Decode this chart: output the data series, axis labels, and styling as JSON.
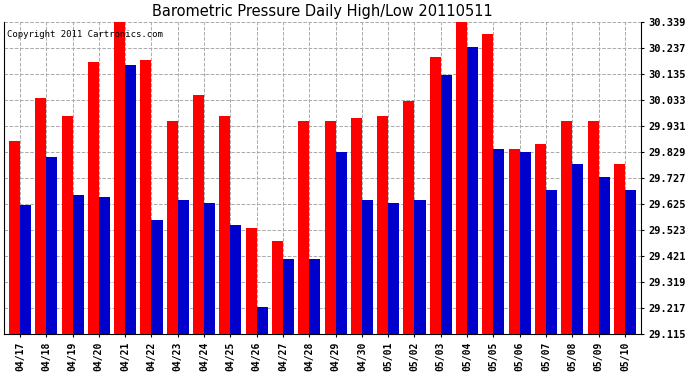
{
  "title": "Barometric Pressure Daily High/Low 20110511",
  "copyright": "Copyright 2011 Cartronics.com",
  "dates": [
    "04/17",
    "04/18",
    "04/19",
    "04/20",
    "04/21",
    "04/22",
    "04/23",
    "04/24",
    "04/25",
    "04/26",
    "04/27",
    "04/28",
    "04/29",
    "04/30",
    "05/01",
    "05/02",
    "05/03",
    "05/04",
    "05/05",
    "05/06",
    "05/07",
    "05/08",
    "05/09",
    "05/10"
  ],
  "highs": [
    29.87,
    30.04,
    29.97,
    30.18,
    30.37,
    30.19,
    29.95,
    30.05,
    29.97,
    29.53,
    29.48,
    29.95,
    29.95,
    29.96,
    29.97,
    30.03,
    30.2,
    30.38,
    30.29,
    29.84,
    29.86,
    29.95,
    29.95,
    29.78
  ],
  "lows": [
    29.62,
    29.81,
    29.66,
    29.65,
    30.17,
    29.56,
    29.64,
    29.63,
    29.54,
    29.22,
    29.41,
    29.41,
    29.83,
    29.64,
    29.63,
    29.64,
    30.13,
    30.24,
    29.84,
    29.83,
    29.68,
    29.78,
    29.73,
    29.68
  ],
  "high_color": "#ff0000",
  "low_color": "#0000cc",
  "bg_color": "#ffffff",
  "grid_color": "#aaaaaa",
  "yticks": [
    29.115,
    29.217,
    29.319,
    29.421,
    29.523,
    29.625,
    29.727,
    29.829,
    29.931,
    30.033,
    30.135,
    30.237,
    30.339
  ],
  "ylim_min": 29.115,
  "ylim_max": 30.339,
  "bar_width": 0.42,
  "figwidth": 6.9,
  "figheight": 3.75,
  "dpi": 100
}
